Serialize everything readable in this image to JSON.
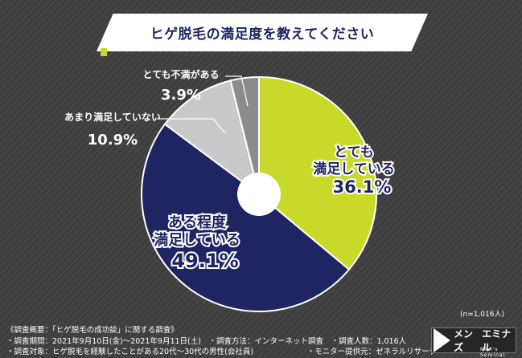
{
  "title": "ヒゲ脱毛の満足度を教えてください",
  "chart_data": {
    "type": "pie",
    "title": "ヒゲ脱毛の満足度を教えてください",
    "slices": [
      {
        "label": "とても満足している",
        "value": 36.1,
        "color": "#c8d92a"
      },
      {
        "label": "ある程度満足している",
        "value": 49.1,
        "color": "#1e2562"
      },
      {
        "label": "あまり満足していない",
        "value": 10.9,
        "color": "#c9c9c9"
      },
      {
        "label": "とても不満がある",
        "value": 3.9,
        "color": "#8c8c8c"
      }
    ],
    "value_labels": [
      "36.1%",
      "49.1%",
      "10.9%",
      "3.9%"
    ]
  },
  "sample_note": "(n=1,016人)",
  "footer": {
    "line1": "《調査概要：「ヒゲ脱毛の成功談」に関する調査》",
    "line2": "・調査期間：2021年9月10日(金)〜2021年9月11日(土)　・調査方法：インターネット調査　・調査人数：1,016人",
    "line3": "・調査対象：ヒゲ脱毛を経験したことがある20代〜30代の男性(会社員)　　　　　　　・モニター提供元：ゼネラルリサーチ"
  },
  "logo": {
    "badge": "メンズ",
    "name": "エミナル",
    "sub": "Men's Seminal"
  }
}
